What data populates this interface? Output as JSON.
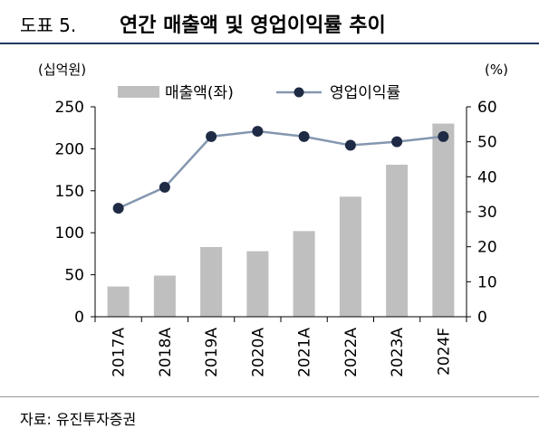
{
  "header": {
    "figure_label": "도표 5.",
    "title": "연간 매출액 및 영업이익률 추이"
  },
  "source": "자료: 유진투자증권",
  "colors": {
    "bar": "#bfbfbf",
    "line": "#8497b0",
    "marker": "#1f2a44",
    "title_rule": "#1f3a5f"
  },
  "chart_data": {
    "type": "bar",
    "categories": [
      "2017A",
      "2018A",
      "2019A",
      "2020A",
      "2021A",
      "2022A",
      "2023A",
      "2024F"
    ],
    "series": [
      {
        "name": "매출액(좌)",
        "type": "bar",
        "axis": "left",
        "values": [
          36,
          49,
          83,
          78,
          102,
          143,
          181,
          230
        ]
      },
      {
        "name": "영업이익률",
        "type": "line",
        "axis": "right",
        "values": [
          31,
          37,
          51.5,
          53,
          51.5,
          49,
          50,
          51.5
        ]
      }
    ],
    "left_axis": {
      "unit": "(십억원)",
      "ticks": [
        "0",
        "50",
        "100",
        "150",
        "200",
        "250"
      ],
      "ylim": [
        0,
        250
      ]
    },
    "right_axis": {
      "unit": "(%)",
      "ticks": [
        "0",
        "10",
        "20",
        "30",
        "40",
        "50",
        "60"
      ],
      "ylim": [
        0,
        60
      ]
    },
    "legend_placement": "top",
    "grid": false
  }
}
